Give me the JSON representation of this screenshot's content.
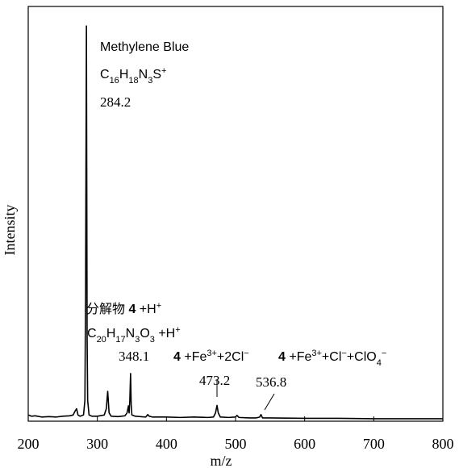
{
  "chart_data": {
    "type": "line",
    "xlabel": "m/z",
    "ylabel": "Intensity",
    "xlim": [
      200,
      800
    ],
    "ylim": [
      0,
      100
    ],
    "xticks": [
      200,
      300,
      400,
      500,
      600,
      700,
      800
    ],
    "color": "#000000",
    "x": [
      200,
      205,
      210,
      220,
      230,
      240,
      250,
      260,
      265,
      268,
      270,
      272,
      275,
      280,
      282,
      283,
      284.2,
      285.2,
      286,
      288,
      292,
      300,
      310,
      313,
      315,
      317,
      320,
      330,
      340,
      343,
      345,
      346,
      347,
      348.1,
      349,
      350,
      355,
      370,
      373,
      375,
      380,
      400,
      420,
      440,
      460,
      468,
      471,
      473.2,
      475,
      478,
      490,
      500,
      502,
      505,
      520,
      530,
      535,
      536.8,
      539,
      550,
      600,
      650,
      700,
      750,
      800
    ],
    "values": [
      1.5,
      1.2,
      1.3,
      1.0,
      1.1,
      1.0,
      1.2,
      1.3,
      1.5,
      2.5,
      3,
      1.5,
      1.2,
      1.5,
      5,
      31.5,
      95.3,
      20,
      5,
      1.5,
      1.2,
      1.2,
      1.5,
      3,
      7.2,
      2,
      1.2,
      1.1,
      1.3,
      2,
      3.7,
      2,
      5,
      11.5,
      4,
      1.5,
      1.2,
      1,
      1.6,
      1.2,
      1,
      1,
      0.9,
      1,
      0.9,
      1,
      2,
      3.8,
      2,
      1,
      0.9,
      1,
      1.4,
      0.9,
      0.8,
      0.8,
      1,
      1.6,
      0.8,
      0.8,
      0.7,
      0.7,
      0.6,
      0.6,
      0.6
    ],
    "annotations": [
      {
        "font": "sans",
        "segments": [
          {
            "text": "Methylene Blue"
          }
        ]
      },
      {
        "font": "sans",
        "segments": [
          {
            "text": "C"
          },
          {
            "text": "16",
            "style": "sub"
          },
          {
            "text": "H"
          },
          {
            "text": "18",
            "style": "sub"
          },
          {
            "text": "N"
          },
          {
            "text": "3",
            "style": "sub"
          },
          {
            "text": "S"
          },
          {
            "text": "+",
            "style": "sup"
          }
        ]
      },
      {
        "font": "serif",
        "segments": [
          {
            "text": "284.2"
          }
        ]
      },
      {
        "font": "sans",
        "segments": [
          {
            "text": "分解物 "
          },
          {
            "text": "4",
            "style": "bold"
          },
          {
            "text": " +H"
          },
          {
            "text": "+",
            "style": "sup"
          }
        ]
      },
      {
        "font": "sans",
        "segments": [
          {
            "text": "C"
          },
          {
            "text": "20",
            "style": "sub"
          },
          {
            "text": "H"
          },
          {
            "text": "17",
            "style": "sub"
          },
          {
            "text": "N"
          },
          {
            "text": "3",
            "style": "sub"
          },
          {
            "text": "O"
          },
          {
            "text": "3",
            "style": "sub"
          },
          {
            "text": " +H"
          },
          {
            "text": "+",
            "style": "sup"
          }
        ]
      },
      {
        "font": "serif",
        "segments": [
          {
            "text": "348.1"
          }
        ]
      },
      {
        "font": "sans",
        "segments": [
          {
            "text": "4",
            "style": "bold"
          },
          {
            "text": " +Fe"
          },
          {
            "text": "3+",
            "style": "sup"
          },
          {
            "text": "+2Cl"
          },
          {
            "text": "−",
            "style": "sup"
          }
        ]
      },
      {
        "font": "sans",
        "segments": [
          {
            "text": "4",
            "style": "bold"
          },
          {
            "text": " +Fe"
          },
          {
            "text": "3+",
            "style": "sup"
          },
          {
            "text": "+Cl"
          },
          {
            "text": "−",
            "style": "sup"
          },
          {
            "text": "+ClO"
          },
          {
            "text": "4",
            "style": "sub"
          },
          {
            "text": "−",
            "style": "sup"
          }
        ]
      },
      {
        "font": "serif",
        "segments": [
          {
            "text": "473.2"
          }
        ]
      },
      {
        "font": "serif",
        "segments": [
          {
            "text": "536.8"
          }
        ]
      }
    ]
  }
}
